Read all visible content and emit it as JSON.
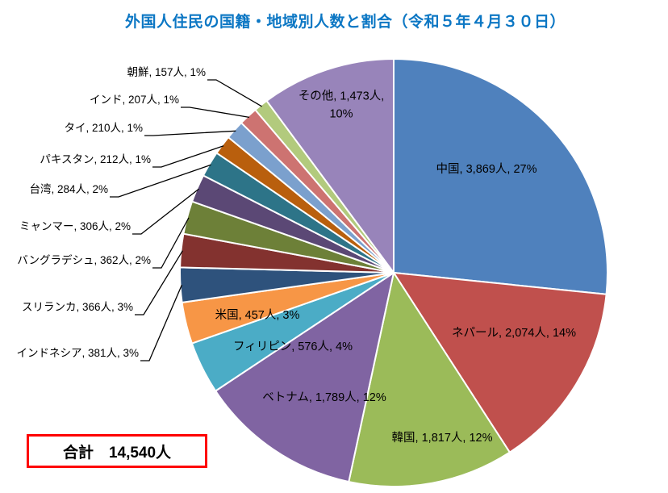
{
  "total_label": "合計　14,540人",
  "chart_data": {
    "type": "pie",
    "title": "外国人住民の国籍・地域別人数と割合（令和５年４月３０日）",
    "unit": "人",
    "total": 14540,
    "start_angle_deg": 0,
    "direction": "clockwise",
    "title_color": "#0C77C4",
    "slice_separator_color": "#ffffff",
    "slices": [
      {
        "name": "中国",
        "value": 3869,
        "pct": 27,
        "color": "#4F81BD",
        "label": "中国, 3,869人, 27%",
        "label_placement": "inside"
      },
      {
        "name": "ネパール",
        "value": 2074,
        "pct": 14,
        "color": "#C0504D",
        "label": "ネパール, 2,074人, 14%",
        "label_placement": "inside"
      },
      {
        "name": "韓国",
        "value": 1817,
        "pct": 12,
        "color": "#9BBB59",
        "label": "韓国, 1,817人, 12%",
        "label_placement": "inside"
      },
      {
        "name": "ベトナム",
        "value": 1789,
        "pct": 12,
        "color": "#8064A2",
        "label": "ベトナム, 1,789人, 12%",
        "label_placement": "inside"
      },
      {
        "name": "フィリピン",
        "value": 576,
        "pct": 4,
        "color": "#4BACC6",
        "label": "フィリピン, 576人, 4%",
        "label_placement": "inside"
      },
      {
        "name": "米国",
        "value": 457,
        "pct": 3,
        "color": "#F79646",
        "label": "米国, 457人, 3%",
        "label_placement": "inside"
      },
      {
        "name": "インドネシア",
        "value": 381,
        "pct": 3,
        "color": "#2E527C",
        "label": "インドネシア, 381人, 3%",
        "label_placement": "callout"
      },
      {
        "name": "スリランカ",
        "value": 366,
        "pct": 3,
        "color": "#83322F",
        "label": "スリランカ, 366人, 3%",
        "label_placement": "callout"
      },
      {
        "name": "バングラデシュ",
        "value": 362,
        "pct": 2,
        "color": "#6D8038",
        "label": "バングラデシュ, 362人, 2%",
        "label_placement": "callout"
      },
      {
        "name": "ミャンマー",
        "value": 306,
        "pct": 2,
        "color": "#5B4875",
        "label": "ミャンマー, 306人, 2%",
        "label_placement": "callout"
      },
      {
        "name": "台湾",
        "value": 284,
        "pct": 2,
        "color": "#2D7488",
        "label": "台湾, 284人, 2%",
        "label_placement": "callout"
      },
      {
        "name": "パキスタン",
        "value": 212,
        "pct": 1,
        "color": "#B95F0D",
        "label": "パキスタン, 212人, 1%",
        "label_placement": "callout"
      },
      {
        "name": "タイ",
        "value": 210,
        "pct": 1,
        "color": "#7BA0CD",
        "label": "タイ, 210人, 1%",
        "label_placement": "callout"
      },
      {
        "name": "インド",
        "value": 207,
        "pct": 1,
        "color": "#CD7371",
        "label": "インド, 207人, 1%",
        "label_placement": "callout"
      },
      {
        "name": "朝鮮",
        "value": 157,
        "pct": 1,
        "color": "#B2CA7D",
        "label": "朝鮮, 157人, 1%",
        "label_placement": "callout"
      },
      {
        "name": "その他",
        "value": 1473,
        "pct": 10,
        "color": "#9884BA",
        "label": "その他, 1,473人, 10%",
        "label_placement": "inside",
        "label_lines": [
          "その他, 1,473人,",
          "10%"
        ]
      }
    ]
  }
}
